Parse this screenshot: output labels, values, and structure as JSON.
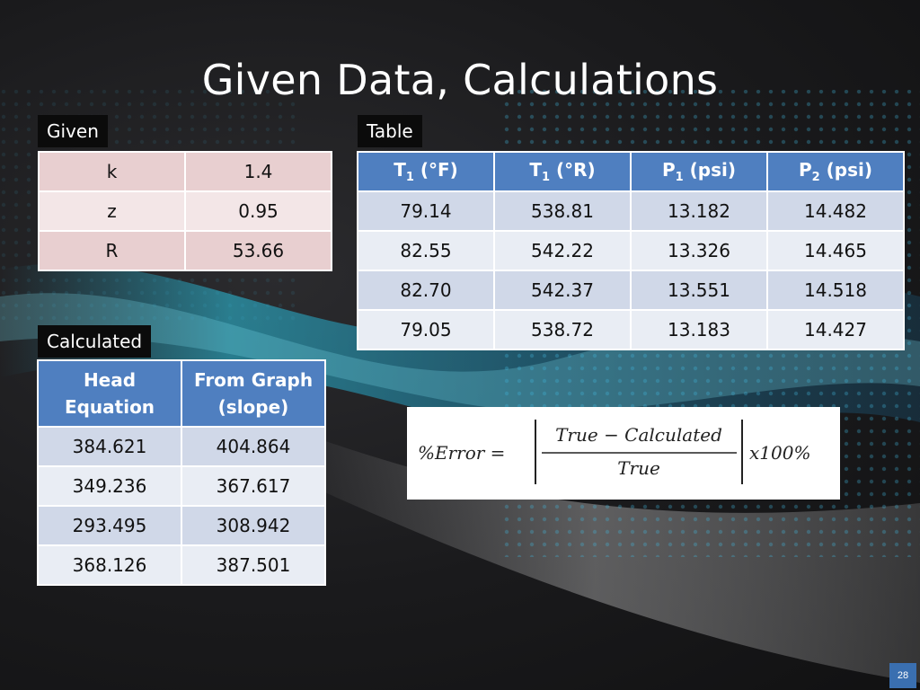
{
  "slide": {
    "title": "Given Data, Calculations",
    "page_number": "28"
  },
  "given": {
    "label": "Given",
    "rows": [
      {
        "name": "k",
        "value": "1.4"
      },
      {
        "name": "z",
        "value": "0.95"
      },
      {
        "name": "R",
        "value": "53.66"
      }
    ]
  },
  "table": {
    "label": "Table",
    "headers": [
      {
        "main": "T",
        "sub": "1",
        "unit": " (°F)"
      },
      {
        "main": "T",
        "sub": "1",
        "unit": " (°R)"
      },
      {
        "main": "P",
        "sub": "1",
        "unit": " (psi)"
      },
      {
        "main": "P",
        "sub": "2",
        "unit": " (psi)"
      }
    ],
    "rows": [
      [
        "79.14",
        "538.81",
        "13.182",
        "14.482"
      ],
      [
        "82.55",
        "542.22",
        "13.326",
        "14.465"
      ],
      [
        "82.70",
        "542.37",
        "13.551",
        "14.518"
      ],
      [
        "79.05",
        "538.72",
        "13.183",
        "14.427"
      ]
    ]
  },
  "calculated": {
    "label": "Calculated",
    "headers": [
      {
        "line1": "Head",
        "line2": "Equation"
      },
      {
        "line1": "From Graph",
        "line2": "(slope)"
      }
    ],
    "rows": [
      [
        "384.621",
        "404.864"
      ],
      [
        "349.236",
        "367.617"
      ],
      [
        "293.495",
        "308.942"
      ],
      [
        "368.126",
        "387.501"
      ]
    ]
  },
  "formula": {
    "lhs": "%Error =",
    "numerator": "True − Calculated",
    "denominator": "True",
    "multiplier": "x100%"
  }
}
